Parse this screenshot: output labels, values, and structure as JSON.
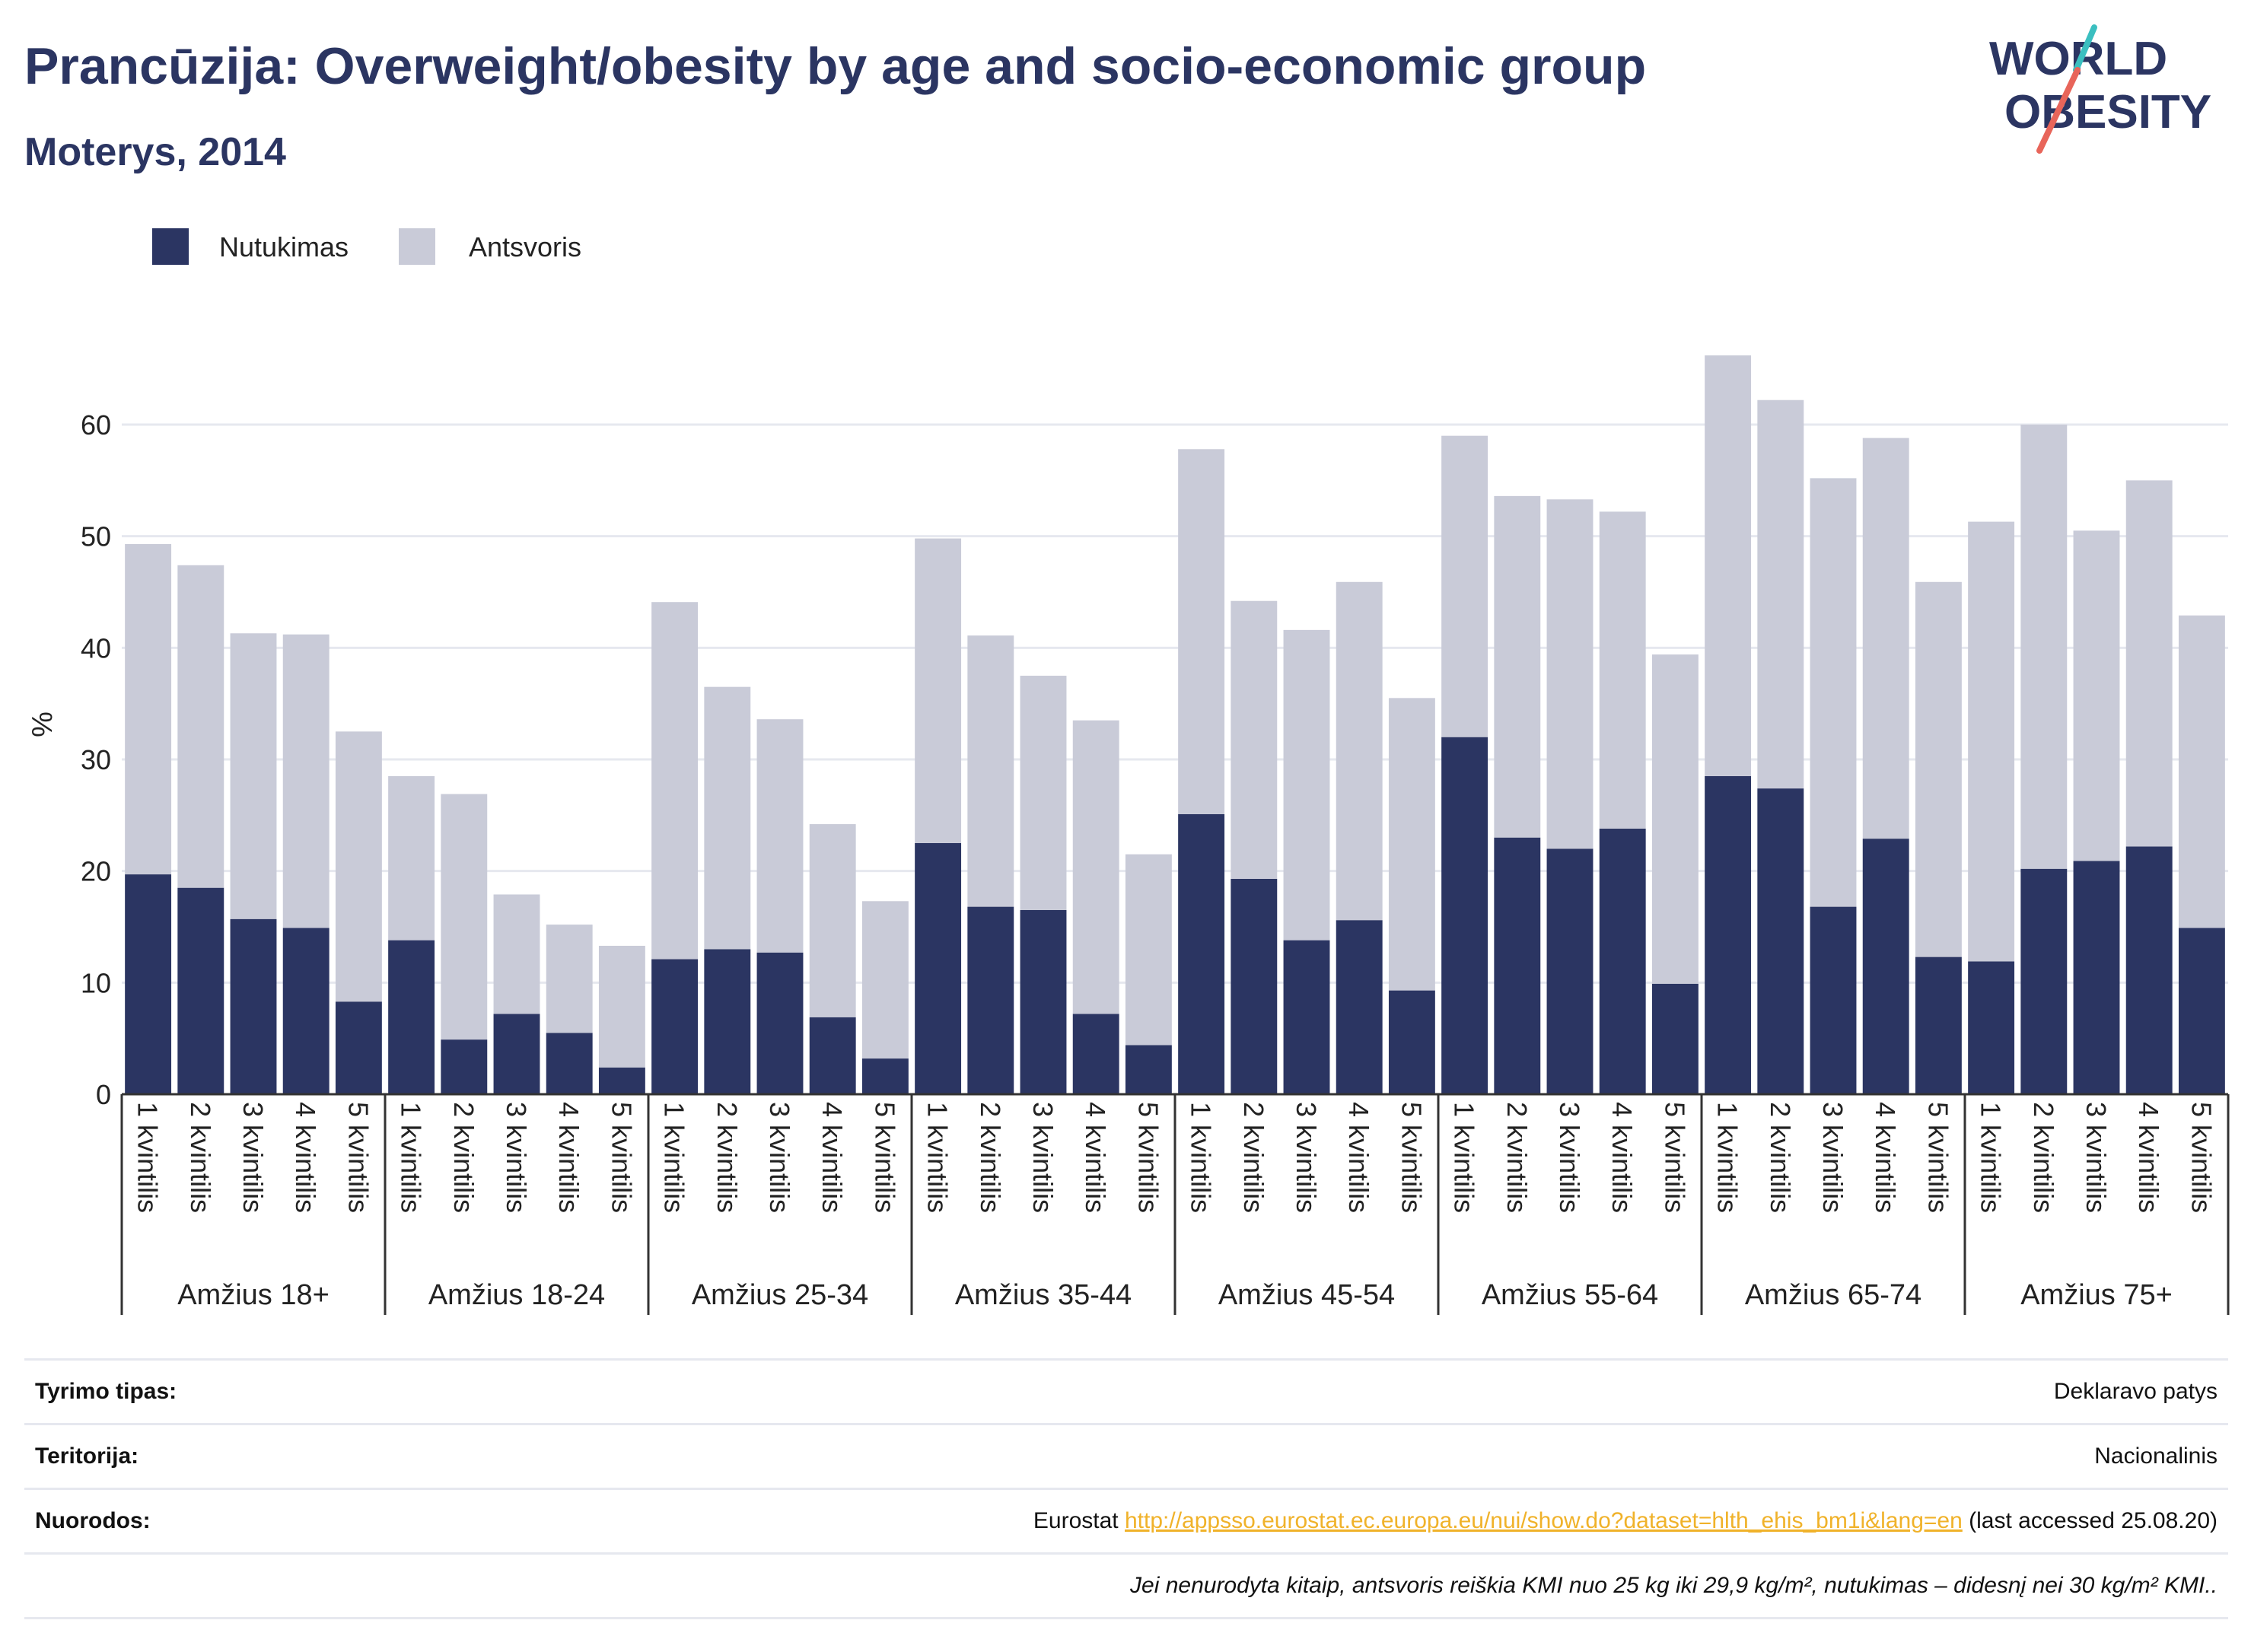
{
  "header": {
    "title": "Prancūzija: Overweight/obesity by age and socio-economic group",
    "subtitle": "Moterys, 2014"
  },
  "logo": {
    "line1": "WORLD",
    "line2": "OBESITY",
    "accent_colors": [
      "#e8655a",
      "#3bbfc0"
    ],
    "text_color": "#2b3562"
  },
  "colors": {
    "obesity": "#2b3562",
    "overweight": "#c9cbd8",
    "grid": "#e6e8ef",
    "axis": "#333333"
  },
  "chart_data": {
    "type": "bar",
    "stacked": true,
    "ylabel": "%",
    "ylim": [
      0,
      66
    ],
    "yticks": [
      0,
      10,
      20,
      30,
      40,
      50,
      60
    ],
    "grid": true,
    "legend_position": "top-left",
    "legend": [
      "Nutukimas",
      "Antsvoris"
    ],
    "groups": [
      "Amžius 18+",
      "Amžius 18-24",
      "Amžius 25-34",
      "Amžius 35-44",
      "Amžius 45-54",
      "Amžius 55-64",
      "Amžius 65-74",
      "Amžius 75+"
    ],
    "categories": [
      "1 kvintilis",
      "2 kvintilis",
      "3 kvintilis",
      "4 kvintilis",
      "5 kvintilis"
    ],
    "series": [
      {
        "name": "Nutukimas",
        "values": [
          [
            19.7,
            18.5,
            15.7,
            14.9,
            8.3
          ],
          [
            13.8,
            4.9,
            7.2,
            5.5,
            2.4
          ],
          [
            12.1,
            13.0,
            12.7,
            6.9,
            3.2
          ],
          [
            22.5,
            16.8,
            16.5,
            7.2,
            4.4
          ],
          [
            25.1,
            19.3,
            13.8,
            15.6,
            9.3
          ],
          [
            32.0,
            23.0,
            22.0,
            23.8,
            9.9
          ],
          [
            28.5,
            27.4,
            16.8,
            22.9,
            12.3
          ],
          [
            11.9,
            20.2,
            20.9,
            22.2,
            14.9
          ]
        ]
      },
      {
        "name": "Antsvoris",
        "values": [
          [
            29.6,
            28.9,
            25.6,
            26.3,
            24.2
          ],
          [
            14.7,
            22.0,
            10.7,
            9.7,
            10.9
          ],
          [
            32.0,
            23.5,
            20.9,
            17.3,
            14.1
          ],
          [
            27.3,
            24.3,
            21.0,
            26.3,
            17.1
          ],
          [
            32.7,
            24.9,
            27.8,
            30.3,
            26.2
          ],
          [
            27.0,
            30.6,
            31.3,
            28.4,
            29.5
          ],
          [
            37.7,
            34.8,
            38.4,
            35.9,
            33.6
          ],
          [
            39.4,
            39.8,
            29.6,
            32.8,
            28.0
          ]
        ]
      }
    ]
  },
  "info": {
    "survey_label": "Tyrimo tipas:",
    "survey_value": "Deklaravo patys",
    "territory_label": "Teritorija:",
    "territory_value": "Nacionalinis",
    "references_label": "Nuorodos:",
    "references_prefix": "Eurostat",
    "references_link": "http://appsso.eurostat.ec.europa.eu/nui/show.do?dataset=hlth_ehis_bm1i&lang=en",
    "references_suffix": "(last accessed 25.08.20)",
    "note": "Jei nenurodyta kitaip, antsvoris reiškia KMI nuo 25 kg iki 29,9 kg/m², nutukimas – didesnį nei 30 kg/m² KMI.."
  }
}
